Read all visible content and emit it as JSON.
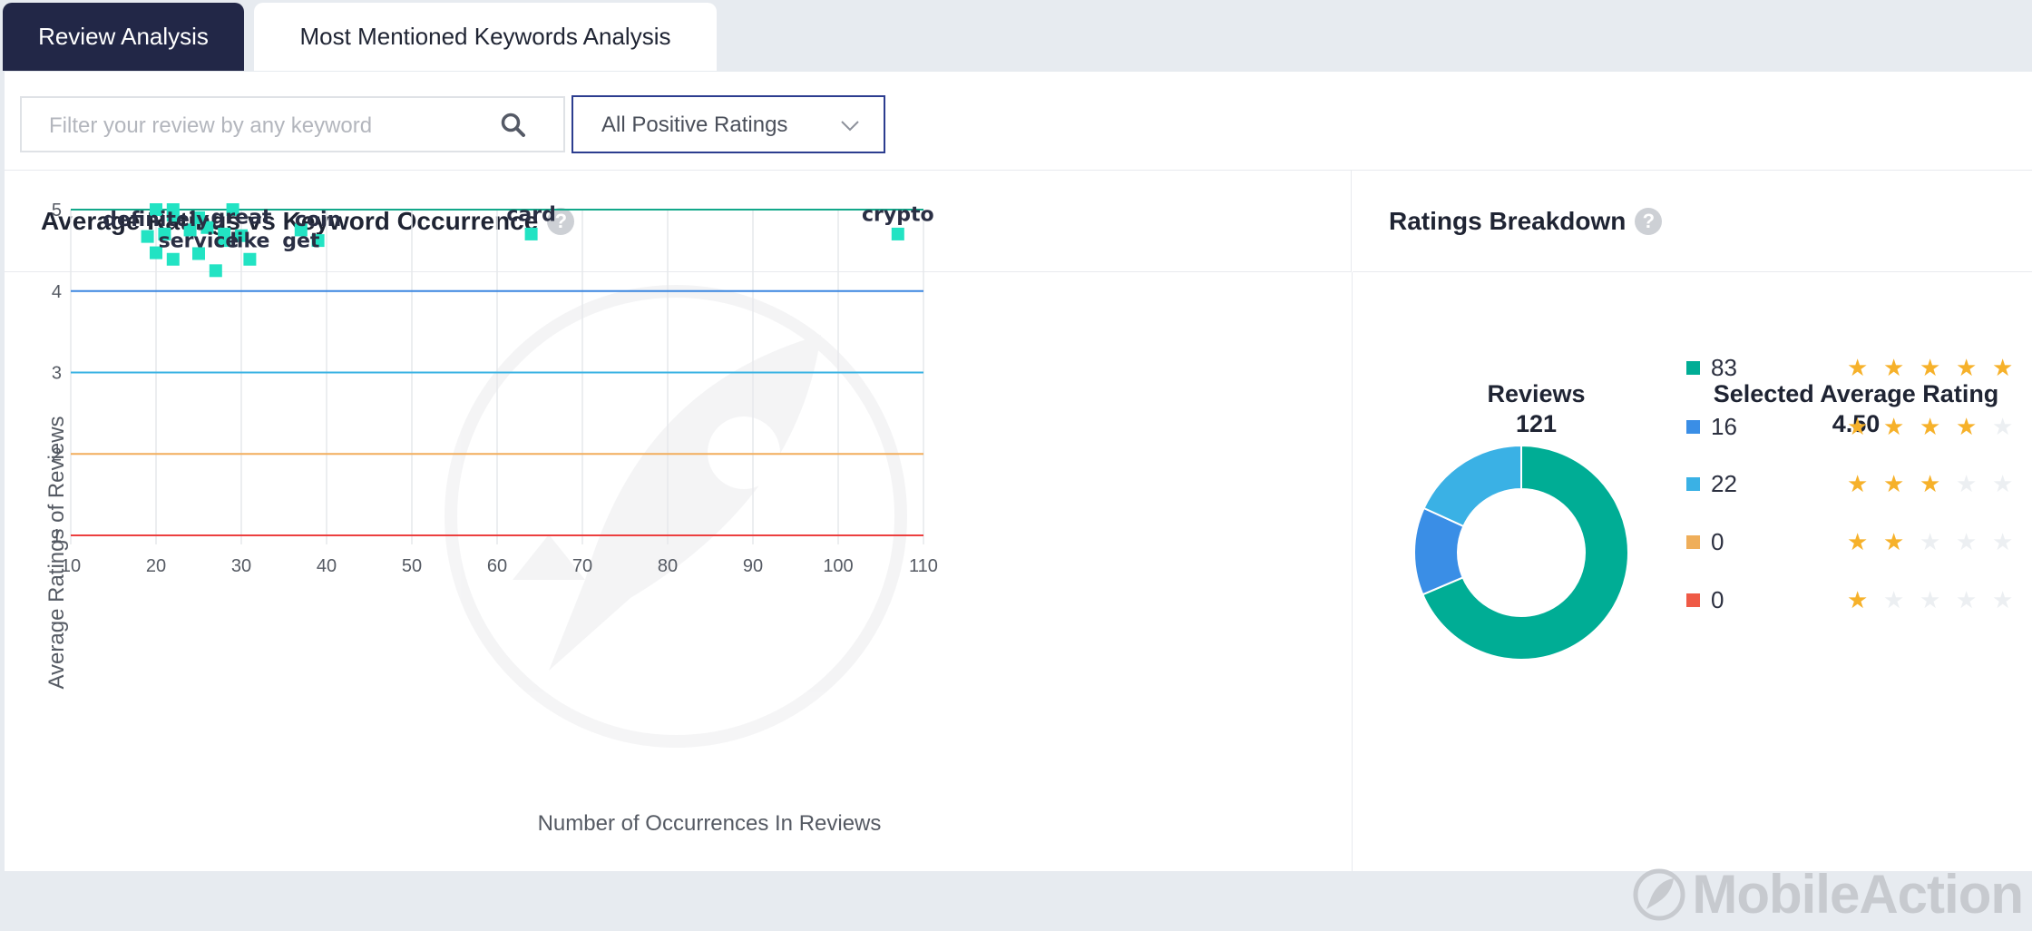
{
  "tabs": [
    {
      "label": "Review Analysis",
      "active": true
    },
    {
      "label": "Most Mentioned Keywords Analysis",
      "active": false
    }
  ],
  "filters": {
    "search_placeholder": "Filter your review by any keyword",
    "rating_select": "All Positive Ratings"
  },
  "left_section": {
    "title": "Average Ratings vs Keyword Occurrence"
  },
  "right_section": {
    "title": "Ratings Breakdown"
  },
  "chart_data": [
    {
      "type": "scatter",
      "xlabel": "Number of Occurrences In Reviews",
      "ylabel": "Average Ratings of Reviews",
      "xlim": [
        10,
        110
      ],
      "ylim": [
        1,
        5
      ],
      "xticks": [
        10,
        20,
        30,
        40,
        50,
        60,
        70,
        80,
        90,
        100,
        110
      ],
      "yticks": [
        1,
        2,
        3,
        4,
        5
      ],
      "grid": true,
      "reference_lines": [
        {
          "y": 5,
          "color": "#12a88a"
        },
        {
          "y": 4,
          "color": "#3a86e0"
        },
        {
          "y": 3,
          "color": "#3ab3e3"
        },
        {
          "y": 2,
          "color": "#f2ad5c"
        },
        {
          "y": 1,
          "color": "#ec3f3f"
        }
      ],
      "point_color": "#22e3c3",
      "points": [
        {
          "x": 20,
          "y": 5.0
        },
        {
          "x": 22,
          "y": 5.0
        },
        {
          "x": 29,
          "y": 5.0
        },
        {
          "x": 22,
          "y": 4.93
        },
        {
          "x": 25,
          "y": 4.9
        },
        {
          "x": 24,
          "y": 4.75
        },
        {
          "x": 26,
          "y": 4.78
        },
        {
          "x": 28,
          "y": 4.7
        },
        {
          "x": 19,
          "y": 4.67
        },
        {
          "x": 21,
          "y": 4.7
        },
        {
          "x": 30,
          "y": 4.68
        },
        {
          "x": 28,
          "y": 4.62
        },
        {
          "x": 20,
          "y": 4.47
        },
        {
          "x": 25,
          "y": 4.46
        },
        {
          "x": 22,
          "y": 4.39
        },
        {
          "x": 31,
          "y": 4.39
        },
        {
          "x": 27,
          "y": 4.25
        },
        {
          "x": 37,
          "y": 4.75
        },
        {
          "x": 39,
          "y": 4.62
        },
        {
          "x": 64,
          "y": 4.7
        },
        {
          "x": 107,
          "y": 4.7
        }
      ],
      "labels": [
        {
          "text": "definitely",
          "x": 20,
          "y": 4.8
        },
        {
          "text": "great",
          "x": 30,
          "y": 4.83
        },
        {
          "text": "coin",
          "x": 39,
          "y": 4.8
        },
        {
          "text": "service",
          "x": 25,
          "y": 4.54
        },
        {
          "text": "like",
          "x": 31,
          "y": 4.54
        },
        {
          "text": "get",
          "x": 37,
          "y": 4.54
        },
        {
          "text": "card",
          "x": 64,
          "y": 4.86
        },
        {
          "text": "crypto",
          "x": 107,
          "y": 4.86
        }
      ]
    },
    {
      "type": "pie",
      "categories": [
        "5 stars",
        "4 stars",
        "3 stars",
        "2 stars",
        "1 star"
      ],
      "values": [
        83,
        16,
        22,
        0,
        0
      ],
      "colors": [
        "#00ad95",
        "#3a8ee6",
        "#3ab1e5",
        "#efae5a",
        "#ef5a46"
      ],
      "stars": [
        5,
        4,
        3,
        2,
        1
      ],
      "donut": true
    }
  ],
  "stats": {
    "reviews_label": "Reviews",
    "reviews_value": "121",
    "avg_label": "Selected Average Rating",
    "avg_value": "4.50"
  },
  "brand": {
    "name": "MobileAction"
  }
}
